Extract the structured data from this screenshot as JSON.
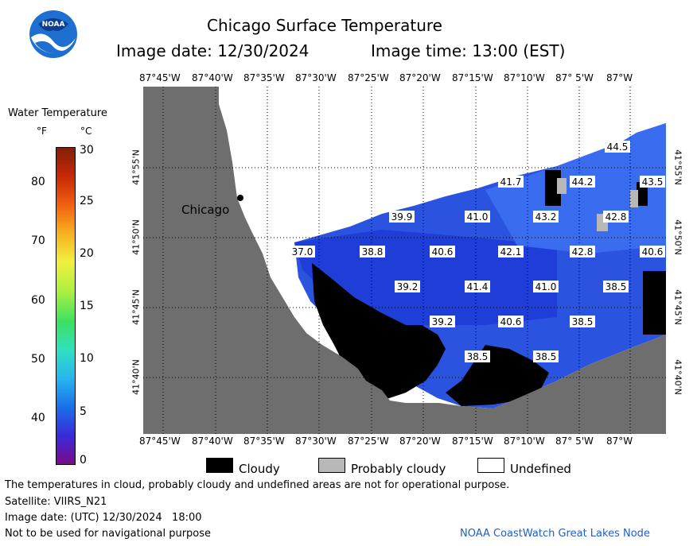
{
  "header": {
    "title": "Chicago Surface Temperature",
    "image_date": "Image date: 12/30/2024",
    "image_time": "Image time: 13:00 (EST)",
    "logo_text": "NOAA"
  },
  "colorbar": {
    "title": "Water Temperature",
    "unit_f": "°F",
    "unit_c": "°C",
    "f_ticks": [
      "80",
      "70",
      "60",
      "50",
      "40"
    ],
    "c_ticks": [
      "30",
      "25",
      "20",
      "15",
      "10",
      "5",
      "0"
    ],
    "colors": [
      "#7a0a8a",
      "#3a2ad8",
      "#1a6fe8",
      "#28b4f0",
      "#30e0c0",
      "#3ce060",
      "#b0f040",
      "#f0f040",
      "#f8b020",
      "#f06010",
      "#c82808",
      "#802008"
    ]
  },
  "map": {
    "lon_labels": [
      "87°45'W",
      "87°40'W",
      "87°35'W",
      "87°30'W",
      "87°25'W",
      "87°20'W",
      "87°15'W",
      "87°10'W",
      "87° 5'W",
      "87°W"
    ],
    "lat_labels": [
      "41°55'N",
      "41°50'N",
      "41°45'N",
      "41°40'N"
    ],
    "city_label": "Chicago",
    "water_color": "#2a54e0",
    "land_color": "#6e6e6e",
    "temps": [
      {
        "value": "44.5"
      },
      {
        "value": "41.7"
      },
      {
        "value": "44.2"
      },
      {
        "value": "43.5"
      },
      {
        "value": "39.9"
      },
      {
        "value": "41.0"
      },
      {
        "value": "43.2"
      },
      {
        "value": "42.8"
      },
      {
        "value": "37.0"
      },
      {
        "value": "38.8"
      },
      {
        "value": "40.6"
      },
      {
        "value": "42.1"
      },
      {
        "value": "42.8"
      },
      {
        "value": "40.6"
      },
      {
        "value": "39.2"
      },
      {
        "value": "41.4"
      },
      {
        "value": "41.0"
      },
      {
        "value": "38.5"
      },
      {
        "value": "39.2"
      },
      {
        "value": "40.6"
      },
      {
        "value": "38.5"
      },
      {
        "value": "38.5"
      },
      {
        "value": "38.5"
      }
    ]
  },
  "legend": {
    "cloudy": "Cloudy",
    "probably_cloudy": "Probably cloudy",
    "undefined": "Undefined"
  },
  "footer": {
    "disclaimer": "The temperatures in cloud, probably cloudy and undefined areas are not for operational purpose.",
    "satellite": "Satellite: VIIRS_N21",
    "utc_date": "Image date: (UTC) 12/30/2024   18:00",
    "nav_warning": "Not to be used for navigational purpose",
    "credit": "NOAA CoastWatch Great Lakes Node"
  }
}
